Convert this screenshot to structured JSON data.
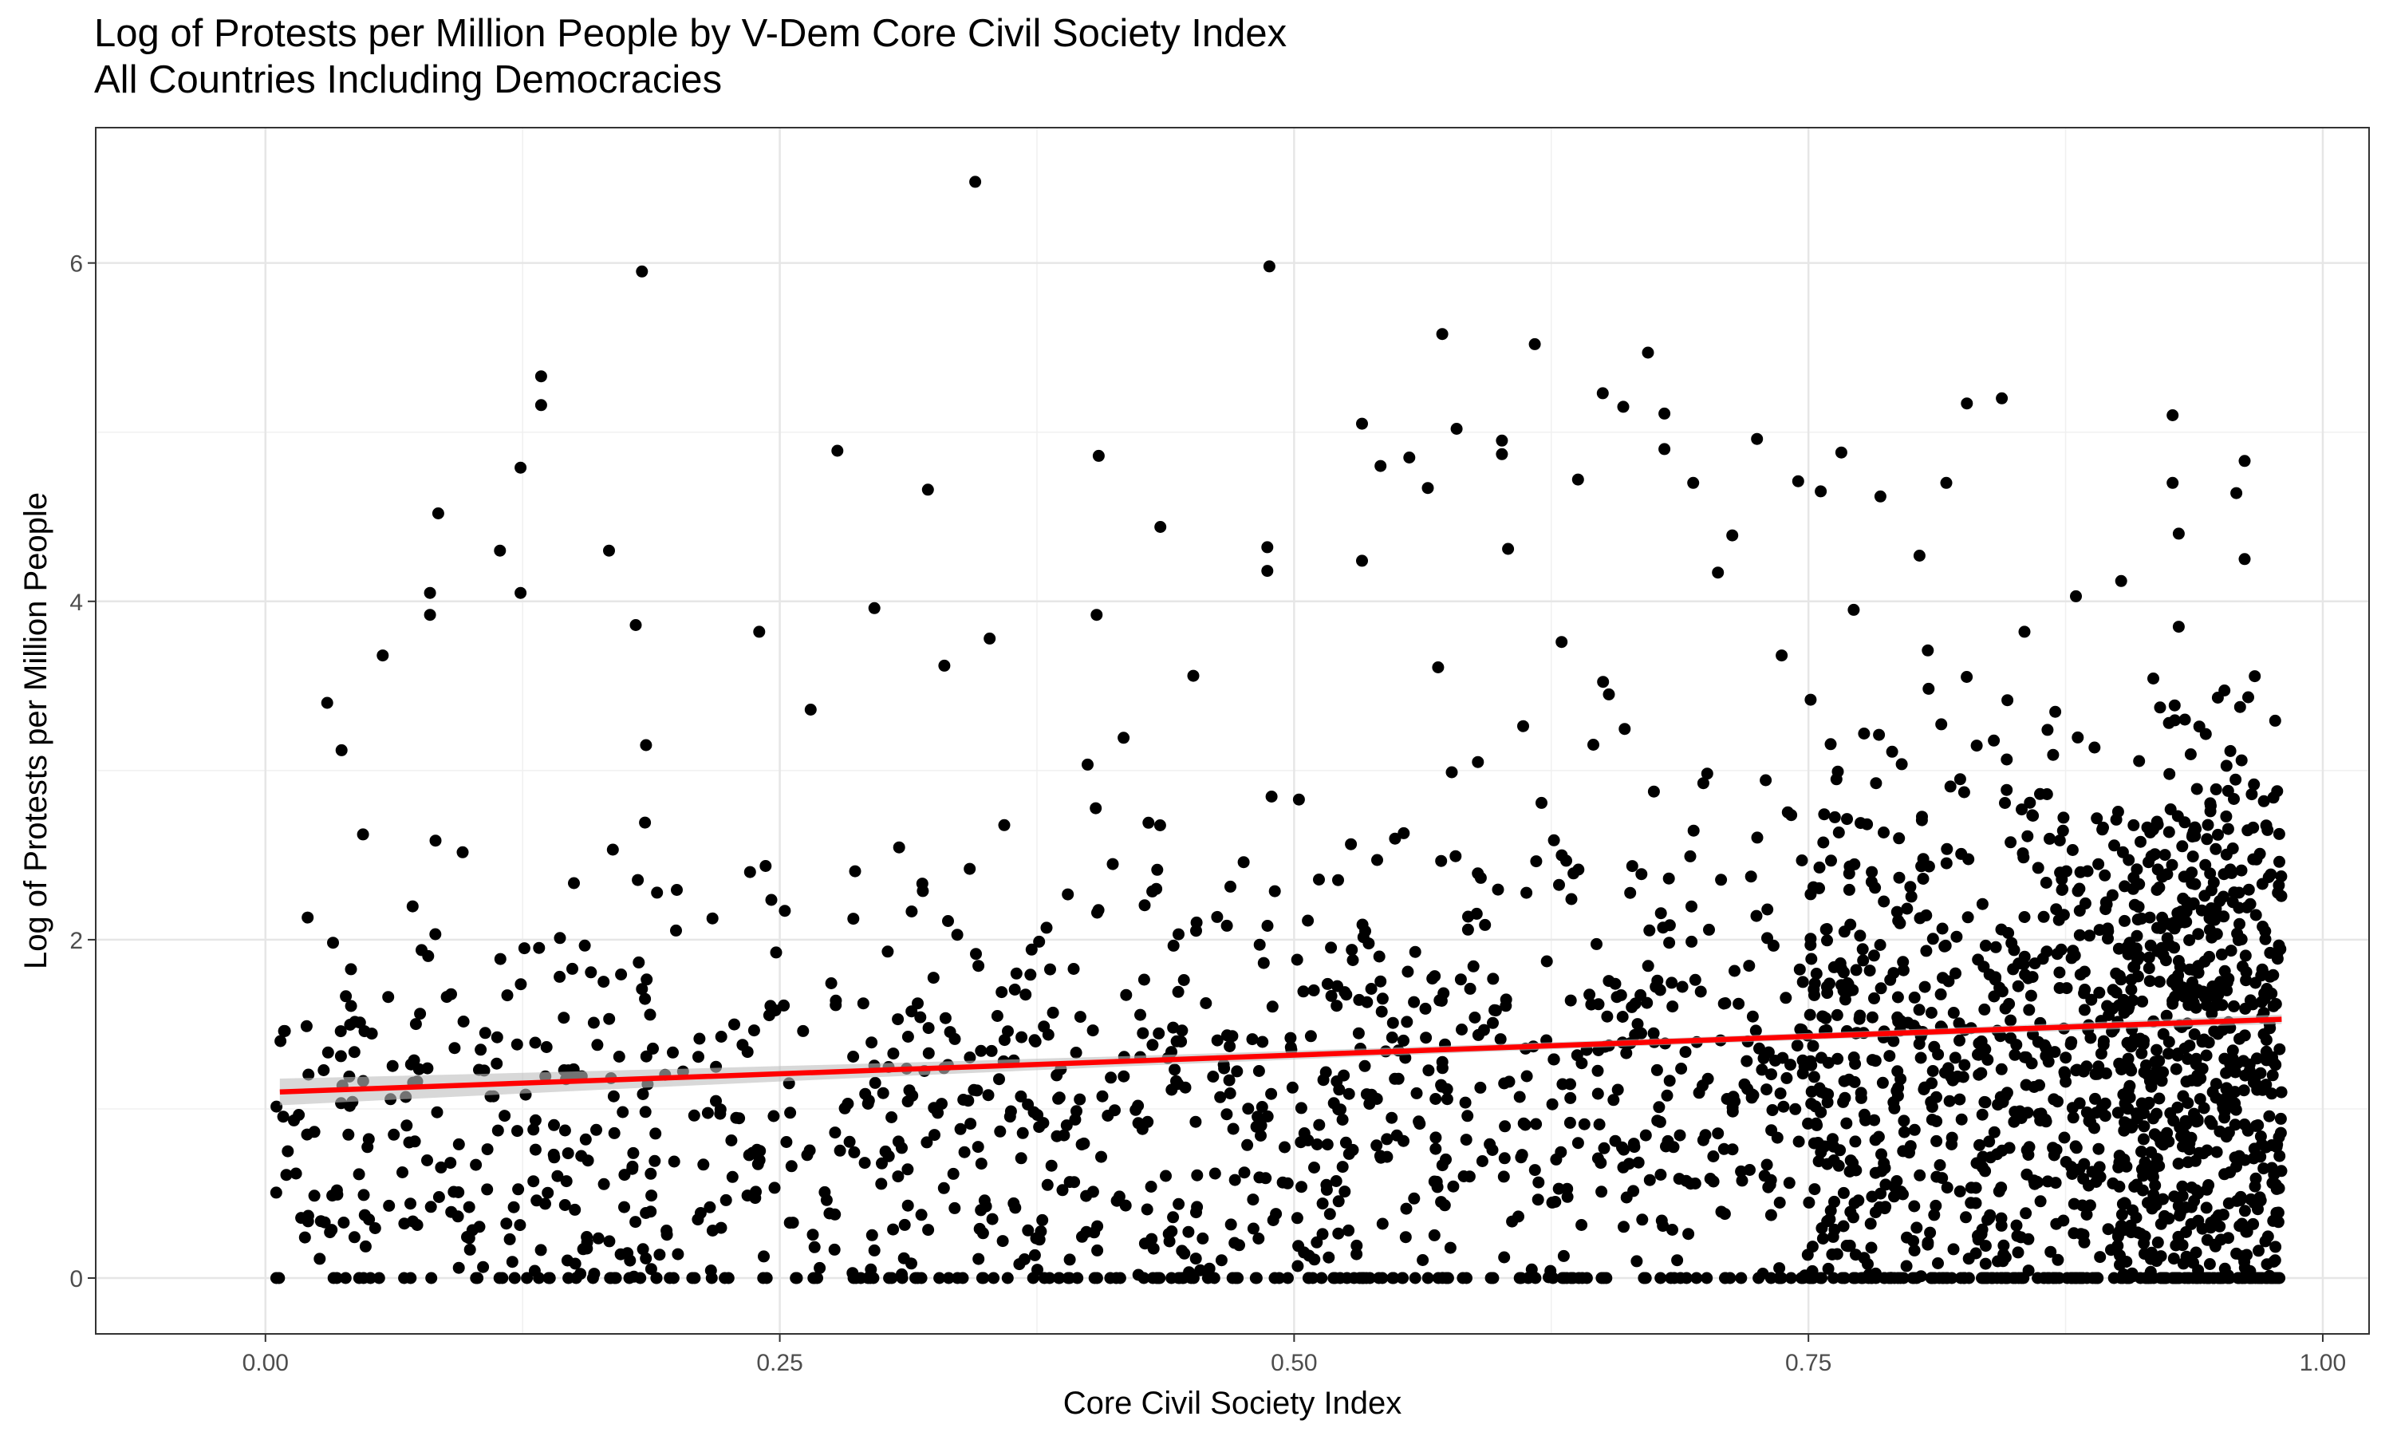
{
  "chart_data": {
    "type": "scatter",
    "title": "Log of Protests per Million People by V-Dem Core Civil Society Index",
    "subtitle": "All Countries Including Democracies",
    "xlabel": "Core Civil Society Index",
    "ylabel": "Log of Protests per Million People",
    "xlim": [
      -0.0825,
      1.0225
    ],
    "ylim": [
      -0.33,
      6.8
    ],
    "x_ticks": [
      0,
      0.25,
      0.5,
      0.75,
      1
    ],
    "x_tick_labels": [
      "0.00",
      "0.25",
      "0.50",
      "0.75",
      "1.00"
    ],
    "y_ticks": [
      0,
      2,
      4,
      6
    ],
    "y_tick_labels": [
      "0",
      "2",
      "4",
      "6"
    ],
    "grid": true,
    "legend": "none",
    "point_color": "#000000",
    "trend_line": {
      "type": "linear",
      "color": "#ff0000",
      "band_color": "#bebebe",
      "x": [
        0.007,
        0.98
      ],
      "y": [
        1.1,
        1.53
      ]
    },
    "labeled_points": {
      "x": [
        0.345,
        0.183,
        0.488,
        0.134,
        0.134,
        0.124,
        0.572,
        0.617,
        0.672,
        0.533,
        0.579,
        0.278,
        0.405,
        0.322,
        0.084,
        0.167,
        0.114,
        0.124,
        0.08,
        0.08,
        0.601,
        0.601,
        0.638,
        0.745,
        0.766,
        0.817,
        0.827,
        0.844,
        0.927,
        0.927,
        0.93,
        0.962,
        0.962,
        0.487,
        0.487,
        0.542,
        0.556,
        0.565,
        0.604,
        0.65,
        0.66,
        0.68,
        0.68,
        0.694,
        0.713,
        0.725,
        0.756,
        0.785,
        0.804,
        0.902,
        0.93,
        0.958,
        0.976,
        0.18,
        0.03,
        0.037,
        0.057,
        0.185,
        0.24,
        0.265,
        0.296,
        0.33,
        0.352,
        0.404,
        0.435,
        0.451,
        0.533,
        0.57,
        0.63,
        0.653,
        0.706,
        0.737,
        0.772,
        0.808,
        0.855,
        0.88,
        0.94
      ],
      "y": [
        6.48,
        5.95,
        5.98,
        5.33,
        5.16,
        4.79,
        5.58,
        5.52,
        5.47,
        5.05,
        5.02,
        4.89,
        4.86,
        4.66,
        4.52,
        4.3,
        4.3,
        4.05,
        4.05,
        3.92,
        4.95,
        4.87,
        4.72,
        4.71,
        4.88,
        4.7,
        5.17,
        5.2,
        5.1,
        4.7,
        4.4,
        4.83,
        4.25,
        4.32,
        4.18,
        4.8,
        4.85,
        4.67,
        4.31,
        5.23,
        5.15,
        5.11,
        4.9,
        4.7,
        4.39,
        4.96,
        4.65,
        4.62,
        4.27,
        4.12,
        3.85,
        4.64,
        2.84,
        3.86,
        3.4,
        3.12,
        3.68,
        3.15,
        3.82,
        3.36,
        3.96,
        3.62,
        3.78,
        3.92,
        4.44,
        3.56,
        4.24,
        3.61,
        3.76,
        3.45,
        4.17,
        3.68,
        3.95,
        3.71,
        3.82,
        4.03,
        3.26
      ]
    }
  }
}
